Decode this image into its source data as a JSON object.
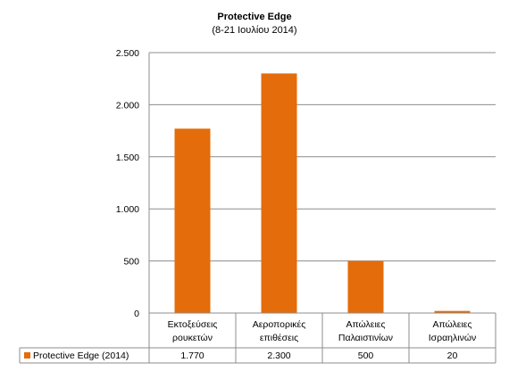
{
  "chart_data": {
    "type": "bar",
    "title": "Protective Edge",
    "subtitle": "(8-21 Ιουλίου 2014)",
    "categories": [
      [
        "Εκτοξεύσεις",
        "ρουκετών"
      ],
      [
        "Αεροπορικές",
        "επιθέσεις"
      ],
      [
        "Απώλειες",
        "Παλαιστινίων"
      ],
      [
        "Απώλειες",
        "Ισραηλινών"
      ]
    ],
    "series": [
      {
        "name": "Protective Edge (2014)",
        "values": [
          1770,
          2300,
          500,
          20
        ],
        "value_labels": [
          "1.770",
          "2.300",
          "500",
          "20"
        ],
        "color": "#e46c0a"
      }
    ],
    "ylim": [
      0,
      2500
    ],
    "yticks": [
      0,
      500,
      1000,
      1500,
      2000,
      2500
    ],
    "ytick_labels": [
      "0",
      "500",
      "1.000",
      "1.500",
      "2.000",
      "2.500"
    ],
    "grid": true,
    "legend": "data-table-below",
    "xlabel": "",
    "ylabel": ""
  }
}
